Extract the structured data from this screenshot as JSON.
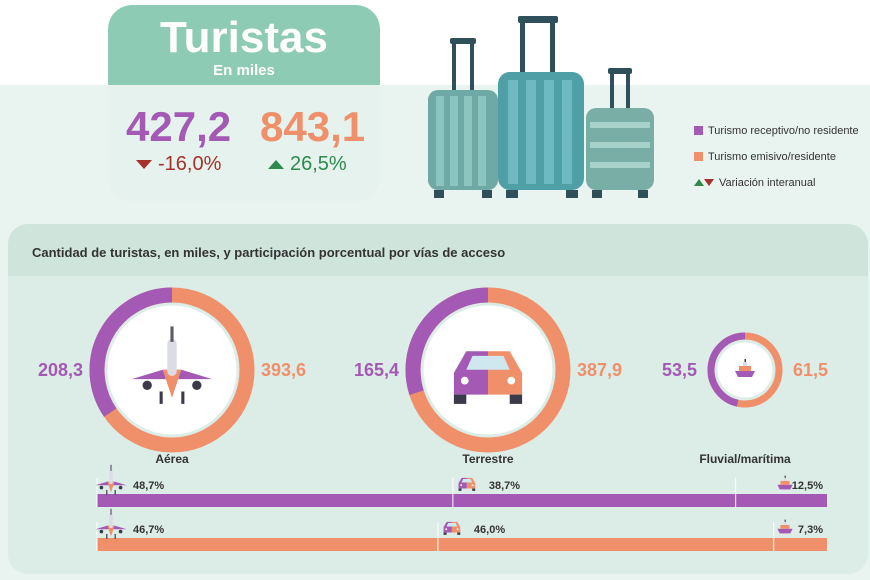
{
  "header": {
    "title": "Turistas",
    "subtitle": "En miles",
    "receptivo_value": "427,2",
    "receptivo_change": "-16,0%",
    "emisivo_value": "843,1",
    "emisivo_change": "26,5%"
  },
  "legend": {
    "items": [
      {
        "label": "Turismo receptivo/no residente",
        "color": "#a459b4"
      },
      {
        "label": "Turismo emisivo/residente",
        "color": "#f0906a"
      },
      {
        "label": "Variación interanual"
      }
    ]
  },
  "colors": {
    "receptivo": "#a459b4",
    "emisivo": "#f0906a",
    "up": "#2e8a4d",
    "down": "#a4312b",
    "teal": "#8ecbb5"
  },
  "panel": {
    "title": "Cantidad de turistas, en miles, y participación porcentual por vías de acceso"
  },
  "chart_data": {
    "type": "pie",
    "title": "Cantidad de turistas, en miles, y participación porcentual por vías de acceso",
    "categories": [
      "Aérea",
      "Terrestre",
      "Fluvial/marítima"
    ],
    "icons": [
      "airplane-icon",
      "car-icon",
      "ship-icon"
    ],
    "series": [
      {
        "name": "Turismo receptivo/no residente",
        "values": [
          208.3,
          165.4,
          53.5
        ],
        "labels": [
          "208,3",
          "165,4",
          "53,5"
        ],
        "shares": [
          48.7,
          38.7,
          12.5
        ],
        "share_labels": [
          "48,7%",
          "38,7%",
          "12,5%"
        ]
      },
      {
        "name": "Turismo emisivo/residente",
        "values": [
          393.6,
          387.9,
          61.5
        ],
        "labels": [
          "393,6",
          "387,9",
          "61,5"
        ],
        "shares": [
          46.7,
          46.0,
          7.3
        ],
        "share_labels": [
          "46,7%",
          "46,0%",
          "7,3%"
        ]
      }
    ]
  }
}
